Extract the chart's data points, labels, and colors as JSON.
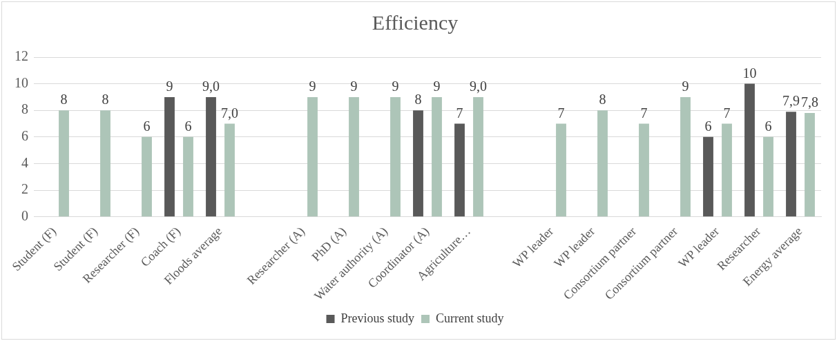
{
  "chart_data": {
    "type": "bar",
    "title": "Efficiency",
    "categories": [
      "Student (F)",
      "Student (F)",
      "Researcher (F)",
      "Coach (F)",
      "Floods average",
      null,
      "Researcher (A)",
      "PhD (A)",
      "Water authority (A)",
      "Coordinator (A)",
      "Agriculture…",
      null,
      "WP leader",
      "WP leader",
      "Consortium partner",
      "Consortium partner",
      "WP leader",
      "Researcher",
      "Energy average"
    ],
    "series": [
      {
        "name": "Previous study",
        "color": "#595959",
        "values": [
          null,
          null,
          null,
          9,
          9,
          null,
          null,
          null,
          null,
          8,
          7,
          null,
          null,
          null,
          null,
          null,
          6,
          10,
          7.9
        ],
        "value_labels": [
          null,
          null,
          null,
          "9",
          "9,0",
          null,
          null,
          null,
          null,
          "8",
          "7",
          null,
          null,
          null,
          null,
          null,
          "6",
          "10",
          "7,9"
        ]
      },
      {
        "name": "Current study",
        "color": "#adc5b8",
        "values": [
          8,
          8,
          6,
          6,
          7,
          null,
          9,
          9,
          9,
          9,
          9,
          null,
          7,
          8,
          7,
          9,
          7,
          6,
          7.8
        ],
        "value_labels": [
          "8",
          "8",
          "6",
          "6",
          "7,0",
          null,
          "9",
          "9",
          "9",
          "9",
          "9,0",
          null,
          "7",
          "8",
          "7",
          "9",
          "7",
          "6",
          "7,8"
        ]
      }
    ],
    "ylim": [
      0,
      12
    ],
    "yticks": [
      0,
      2,
      4,
      6,
      8,
      10,
      12
    ],
    "grid": "y",
    "legend": "bottom"
  }
}
